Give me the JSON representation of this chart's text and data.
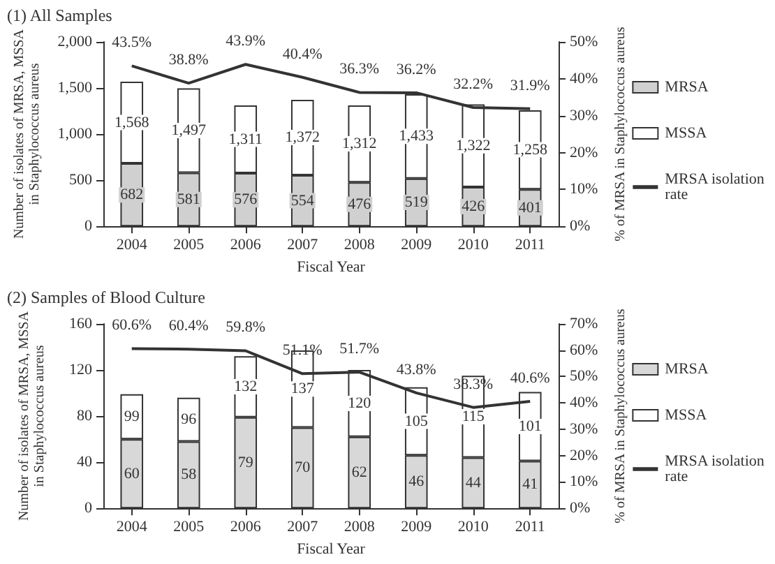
{
  "chart_data": [
    {
      "type": "bar",
      "title": "(1) All Samples",
      "xlabel": "Fiscal Year",
      "ylabel": "Number of isolates of MRSA, MSSA\nin Staphylococcus aureus",
      "y2label": "% of MRSA in Staphylococcus aureus",
      "categories": [
        "2004",
        "2005",
        "2006",
        "2007",
        "2008",
        "2009",
        "2010",
        "2011"
      ],
      "stacked": true,
      "series": [
        {
          "name": "MRSA",
          "color": "#d0d0d0",
          "values": [
            682,
            581,
            576,
            554,
            476,
            519,
            426,
            401
          ],
          "value_labels": [
            "682",
            "581",
            "576",
            "554",
            "476",
            "519",
            "426",
            "401"
          ]
        },
        {
          "name": "MSSA",
          "color": "#ffffff",
          "values": [
            886,
            916,
            735,
            818,
            836,
            914,
            896,
            857
          ]
        },
        {
          "name": "MRSA isolation rate",
          "type": "line",
          "axis": "y2",
          "color": "#333333",
          "values": [
            43.5,
            38.8,
            43.9,
            40.4,
            36.3,
            36.2,
            32.2,
            31.9
          ],
          "value_labels": [
            "43.5%",
            "38.8%",
            "43.9%",
            "40.4%",
            "36.3%",
            "36.2%",
            "32.2%",
            "31.9%"
          ]
        }
      ],
      "totals": [
        "1,568",
        "1,497",
        "1,311",
        "1,372",
        "1,312",
        "1,433",
        "1,322",
        "1,258"
      ],
      "ylim": [
        0,
        2000
      ],
      "yticks": [
        0,
        500,
        {
          "value": 1000,
          "label": "1,000"
        },
        {
          "value": 1500,
          "label": "1,500"
        },
        {
          "value": 2000,
          "label": "2,000"
        }
      ],
      "y2lim": [
        0,
        50
      ],
      "y2ticks": [
        {
          "value": 0,
          "label": "0%"
        },
        {
          "value": 10,
          "label": "10%"
        },
        {
          "value": 20,
          "label": "20%"
        },
        {
          "value": 30,
          "label": "30%"
        },
        {
          "value": 40,
          "label": "40%"
        },
        {
          "value": 50,
          "label": "50%"
        }
      ],
      "legend": "right",
      "marker": "none",
      "line_style": "solid"
    },
    {
      "type": "bar",
      "title": "(2) Samples of Blood Culture",
      "xlabel": "Fiscal Year",
      "ylabel": "Number of isolates of MRSA, MSSA\nin Staphylococcus aureus",
      "y2label": "% of MRSA in Staphylococcus aureus",
      "categories": [
        "2004",
        "2005",
        "2006",
        "2007",
        "2008",
        "2009",
        "2010",
        "2011"
      ],
      "stacked": true,
      "series": [
        {
          "name": "MRSA",
          "color": "#d8d8d8",
          "values": [
            60,
            58,
            79,
            70,
            62,
            46,
            44,
            41
          ],
          "value_labels": [
            "60",
            "58",
            "79",
            "70",
            "62",
            "46",
            "44",
            "41"
          ]
        },
        {
          "name": "MSSA",
          "color": "#ffffff",
          "values": [
            39,
            38,
            53,
            67,
            58,
            59,
            71,
            60
          ]
        },
        {
          "name": "MRSA isolation rate",
          "type": "line",
          "axis": "y2",
          "color": "#333333",
          "values": [
            60.6,
            60.4,
            59.8,
            51.1,
            51.7,
            43.8,
            38.3,
            40.6
          ],
          "value_labels": [
            "60.6%",
            "60.4%",
            "59.8%",
            "51.1%",
            "51.7%",
            "43.8%",
            "38.3%",
            "40.6%"
          ]
        }
      ],
      "totals": [
        "99",
        "96",
        "132",
        "137",
        "120",
        "105",
        "115",
        "101"
      ],
      "ylim": [
        0,
        160
      ],
      "yticks": [
        0,
        40,
        80,
        120,
        160
      ],
      "y2lim": [
        0,
        70
      ],
      "y2ticks": [
        {
          "value": 0,
          "label": "0%"
        },
        {
          "value": 10,
          "label": "10%"
        },
        {
          "value": 20,
          "label": "20%"
        },
        {
          "value": 30,
          "label": "30%"
        },
        {
          "value": 40,
          "label": "40%"
        },
        {
          "value": 50,
          "label": "50%"
        },
        {
          "value": 60,
          "label": "60%"
        },
        {
          "value": 70,
          "label": "70%"
        }
      ],
      "legend": "right",
      "marker": "none",
      "line_style": "solid"
    }
  ]
}
